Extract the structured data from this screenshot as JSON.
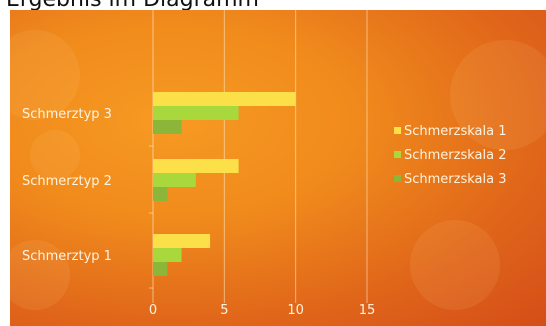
{
  "heading": "Ergebnis im Diagramm",
  "chart_data": {
    "type": "bar",
    "orientation": "horizontal",
    "categories": [
      "Schmerztyp 1",
      "Schmerztyp 2",
      "Schmerztyp 3"
    ],
    "series": [
      {
        "name": "Schmerzskala 1",
        "values": [
          4,
          6,
          10
        ],
        "color": "#fbe04a"
      },
      {
        "name": "Schmerzskala 2",
        "values": [
          2,
          3,
          6
        ],
        "color": "#a9d83c"
      },
      {
        "name": "Schmerzskala 3",
        "values": [
          1,
          1,
          2
        ],
        "color": "#8cb63a"
      }
    ],
    "xlim": [
      0,
      15
    ],
    "xticks": [
      "0",
      "5",
      "10",
      "15"
    ],
    "grid": true,
    "legend": "right"
  }
}
